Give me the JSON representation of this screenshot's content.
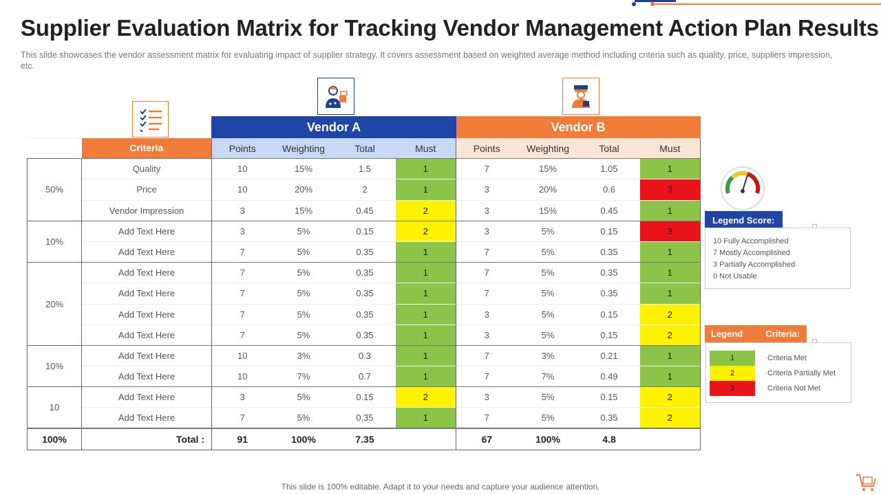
{
  "header": {
    "title": "Supplier Evaluation Matrix for Tracking Vendor Management Action Plan Results",
    "subtitle": "This slide showcases the vendor assessment matrix for evaluating impact of supplier strategy. It covers assessment based on weighted average method including criteria such as quality, price, suppliers impression, etc."
  },
  "icons": {
    "criteria": "checklist-icon",
    "vendor_a": "vendor-person-icon",
    "vendor_b": "vendor-person-icon",
    "score": "gauge-icon",
    "footer": "cart-icon"
  },
  "colors": {
    "blue": "#1f46a5",
    "orange": "#f07c3c",
    "green": "#8cc44a",
    "yellow": "#fff200",
    "red": "#e8141a"
  },
  "table": {
    "criteria_header": "Criteria",
    "vendor_a": "Vendor A",
    "vendor_b": "Vendor B",
    "columns": [
      "Points",
      "Weighting",
      "Total",
      "Must"
    ],
    "groups": [
      {
        "weight": "50%",
        "rows": [
          {
            "criteria": "Quality",
            "a": [
              "10",
              "15%",
              "1.5",
              "1"
            ],
            "a_color": "green",
            "b": [
              "7",
              "15%",
              "1.05",
              "1"
            ],
            "b_color": "green"
          },
          {
            "criteria": "Price",
            "a": [
              "10",
              "20%",
              "2",
              "1"
            ],
            "a_color": "green",
            "b": [
              "3",
              "20%",
              "0.6",
              "3"
            ],
            "b_color": "red"
          },
          {
            "criteria": "Vendor Impression",
            "a": [
              "3",
              "15%",
              "0.45",
              "2"
            ],
            "a_color": "yellow",
            "b": [
              "3",
              "15%",
              "0.45",
              "1"
            ],
            "b_color": "green"
          }
        ]
      },
      {
        "weight": "10%",
        "rows": [
          {
            "criteria": "Add Text Here",
            "a": [
              "3",
              "5%",
              "0.15",
              "2"
            ],
            "a_color": "yellow",
            "b": [
              "3",
              "5%",
              "0.15",
              "3"
            ],
            "b_color": "red"
          },
          {
            "criteria": "Add Text Here",
            "a": [
              "7",
              "5%",
              "0.35",
              "1"
            ],
            "a_color": "green",
            "b": [
              "7",
              "5%",
              "0.35",
              "1"
            ],
            "b_color": "green"
          }
        ]
      },
      {
        "weight": "20%",
        "rows": [
          {
            "criteria": "Add Text Here",
            "a": [
              "7",
              "5%",
              "0.35",
              "1"
            ],
            "a_color": "green",
            "b": [
              "7",
              "5%",
              "0.35",
              "1"
            ],
            "b_color": "green"
          },
          {
            "criteria": "Add Text Here",
            "a": [
              "7",
              "5%",
              "0.35",
              "1"
            ],
            "a_color": "green",
            "b": [
              "7",
              "5%",
              "0.35",
              "1"
            ],
            "b_color": "green"
          },
          {
            "criteria": "Add Text Here",
            "a": [
              "7",
              "5%",
              "0.35",
              "1"
            ],
            "a_color": "green",
            "b": [
              "3",
              "5%",
              "0.15",
              "2"
            ],
            "b_color": "yellow"
          },
          {
            "criteria": "Add Text Here",
            "a": [
              "7",
              "5%",
              "0.35",
              "1"
            ],
            "a_color": "green",
            "b": [
              "3",
              "5%",
              "0.15",
              "2"
            ],
            "b_color": "yellow"
          }
        ]
      },
      {
        "weight": "10%",
        "rows": [
          {
            "criteria": "Add Text Here",
            "a": [
              "10",
              "3%",
              "0.3",
              "1"
            ],
            "a_color": "green",
            "b": [
              "7",
              "3%",
              "0.21",
              "1"
            ],
            "b_color": "green"
          },
          {
            "criteria": "Add Text Here",
            "a": [
              "10",
              "7%",
              "0.7",
              "1"
            ],
            "a_color": "green",
            "b": [
              "7",
              "7%",
              "0.49",
              "1"
            ],
            "b_color": "green"
          }
        ]
      },
      {
        "weight": "10",
        "rows": [
          {
            "criteria": "Add Text Here",
            "a": [
              "3",
              "5%",
              "0.15",
              "2"
            ],
            "a_color": "yellow",
            "b": [
              "3",
              "5%",
              "0.15",
              "2"
            ],
            "b_color": "yellow"
          },
          {
            "criteria": "Add Text Here",
            "a": [
              "7",
              "5%",
              "0.35",
              "1"
            ],
            "a_color": "green",
            "b": [
              "7",
              "5%",
              "0.35",
              "2"
            ],
            "b_color": "yellow"
          }
        ]
      }
    ],
    "total": {
      "weight": "100%",
      "label": "Total :",
      "a": [
        "91",
        "100%",
        "7.35",
        ""
      ],
      "b": [
        "67",
        "100%",
        "4.8",
        ""
      ]
    }
  },
  "legend_score": {
    "title": "Legend Score:",
    "items": [
      "10 Fully Accomplished",
      "7 Mostly Accomplished",
      "3 Partially Accomplished",
      "0 Not Usable"
    ]
  },
  "legend_criteria": {
    "title_left": "Legend",
    "title_right": "Criteria:",
    "items": [
      {
        "value": "1",
        "label": "Criteria Met",
        "color": "green"
      },
      {
        "value": "2",
        "label": "Criteria Partially Met",
        "color": "yellow"
      },
      {
        "value": "3",
        "label": "Criteria Not Met",
        "color": "red"
      }
    ]
  },
  "footer": {
    "text": "This slide is 100% editable. Adapt it to your  needs and capture your audience attention."
  }
}
